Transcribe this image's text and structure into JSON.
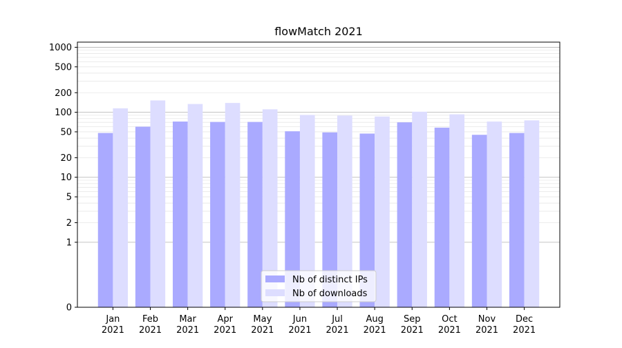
{
  "chart_data": {
    "type": "bar",
    "title": "flowMatch 2021",
    "xlabel": "",
    "ylabel": "",
    "yscale": "symlog",
    "ylim": [
      0,
      1200
    ],
    "grid": true,
    "legend_position": "bottom-center",
    "categories": [
      "Jan\n2021",
      "Feb\n2021",
      "Mar\n2021",
      "Apr\n2021",
      "May\n2021",
      "Jun\n2021",
      "Jul\n2021",
      "Aug\n2021",
      "Sep\n2021",
      "Oct\n2021",
      "Nov\n2021",
      "Dec\n2021"
    ],
    "ytick_labels": [
      "0",
      "1",
      "2",
      "5",
      "10",
      "20",
      "50",
      "100",
      "200",
      "500",
      "1000"
    ],
    "ytick_values": [
      0,
      1,
      2,
      5,
      10,
      20,
      50,
      100,
      200,
      500,
      1000
    ],
    "series": [
      {
        "name": "Nb of distinct IPs",
        "color": "#aaaaff",
        "values": [
          48,
          60,
          72,
          71,
          71,
          51,
          49,
          47,
          70,
          58,
          45,
          48
        ]
      },
      {
        "name": "Nb of downloads",
        "color": "#ddddff",
        "values": [
          115,
          152,
          134,
          139,
          111,
          91,
          89,
          86,
          102,
          93,
          72,
          75
        ]
      }
    ]
  }
}
